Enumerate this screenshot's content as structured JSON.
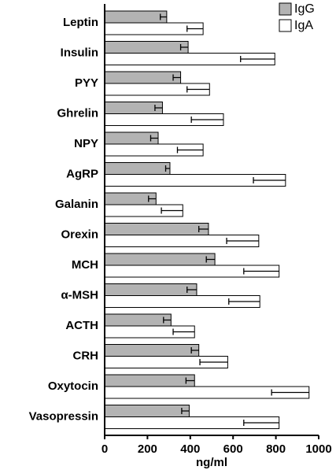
{
  "chart_data": {
    "type": "bar",
    "orientation": "horizontal",
    "categories": [
      "Leptin",
      "Insulin",
      "PYY",
      "Ghrelin",
      "NPY",
      "AgRP",
      "Galanin",
      "Orexin",
      "MCH",
      "α-MSH",
      "ACTH",
      "CRH",
      "Oxytocin",
      "Vasopressin"
    ],
    "series": [
      {
        "name": "IgG",
        "color": "#b3b3b3",
        "values": [
          290,
          390,
          355,
          270,
          250,
          305,
          240,
          485,
          515,
          430,
          310,
          440,
          420,
          395
        ],
        "errors": [
          30,
          35,
          35,
          35,
          35,
          20,
          35,
          45,
          40,
          45,
          35,
          35,
          40,
          35
        ]
      },
      {
        "name": "IgA",
        "color": "#ffffff",
        "values": [
          460,
          795,
          490,
          555,
          460,
          845,
          365,
          720,
          815,
          725,
          420,
          575,
          955,
          815
        ],
        "errors": [
          75,
          160,
          105,
          150,
          120,
          150,
          100,
          150,
          165,
          145,
          100,
          130,
          175,
          165
        ]
      }
    ],
    "x_label": "ng/ml",
    "xlim": [
      0,
      1000
    ],
    "xticks": [
      0,
      200,
      400,
      600,
      800,
      1000
    ],
    "legend": "top-right"
  }
}
